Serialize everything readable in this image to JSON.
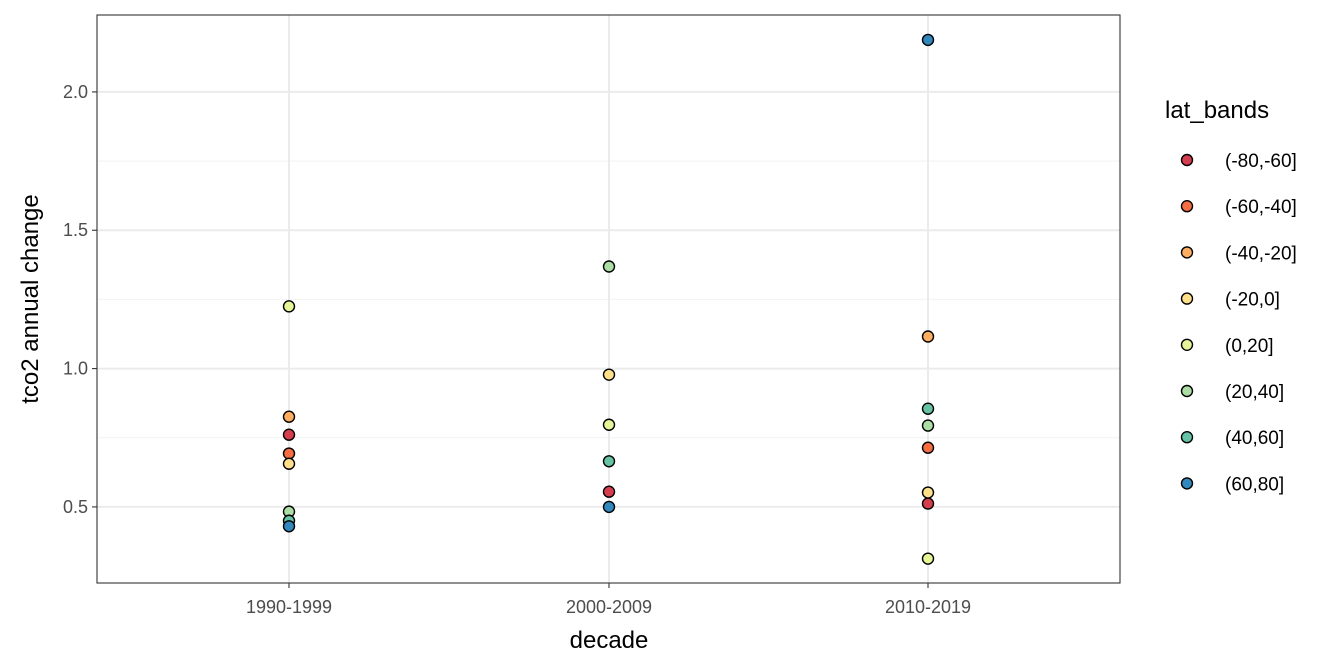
{
  "chart_data": {
    "type": "scatter",
    "title": "",
    "xlabel": "decade",
    "ylabel": "tco2 annual change",
    "categories": [
      "1990-1999",
      "2000-2009",
      "2010-2019"
    ],
    "ylim": [
      0.225,
      2.278
    ],
    "yticks": [
      0.5,
      1.0,
      1.5,
      2.0
    ],
    "ytick_labels": [
      "0.5",
      "1.0",
      "1.5",
      "2.0"
    ],
    "grid": true,
    "legend": {
      "title": "lat_bands",
      "placement": "right",
      "entries": [
        "(-80,-60]",
        "(-60,-40]",
        "(-40,-20]",
        "(-20,0]",
        "(0,20]",
        "(20,40]",
        "(40,60]",
        "(60,80]"
      ]
    },
    "colors": [
      "#D53E4F",
      "#F46D43",
      "#FDAE61",
      "#FEE08B",
      "#E6F598",
      "#ABDDA4",
      "#66C2A5",
      "#3288BD"
    ],
    "series": [
      {
        "name": "(-80,-60]",
        "values": [
          0.761,
          0.555,
          0.512
        ]
      },
      {
        "name": "(-60,-40]",
        "values": [
          0.693,
          null,
          0.714
        ]
      },
      {
        "name": "(-40,-20]",
        "values": [
          0.826,
          null,
          1.116
        ]
      },
      {
        "name": "(-20,0]",
        "values": [
          0.656,
          0.978,
          0.552
        ]
      },
      {
        "name": "(0,20]",
        "values": [
          1.225,
          0.797,
          0.313
        ]
      },
      {
        "name": "(20,40]",
        "values": [
          0.483,
          1.369,
          0.794
        ]
      },
      {
        "name": "(40,60]",
        "values": [
          0.45,
          0.665,
          0.855
        ]
      },
      {
        "name": "(60,80]",
        "values": [
          0.43,
          0.5,
          2.188
        ]
      }
    ]
  }
}
